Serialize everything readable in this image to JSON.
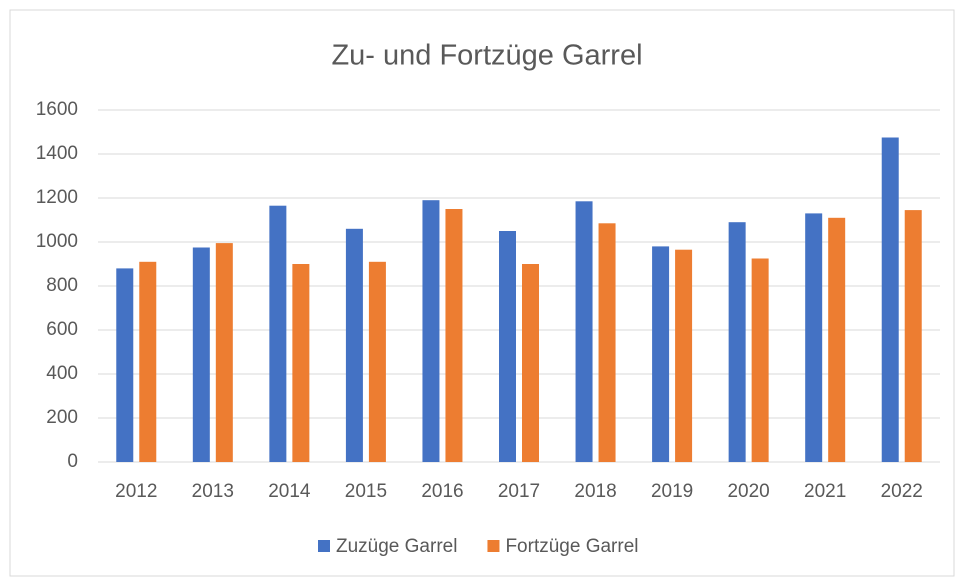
{
  "chart_data": {
    "type": "bar",
    "title": "Zu- und Fortzüge Garrel",
    "categories": [
      "2012",
      "2013",
      "2014",
      "2015",
      "2016",
      "2017",
      "2018",
      "2019",
      "2020",
      "2021",
      "2022"
    ],
    "series": [
      {
        "name": "Zuzüge Garrel",
        "color": "#4472c4",
        "values": [
          880,
          975,
          1165,
          1060,
          1190,
          1050,
          1185,
          980,
          1090,
          1130,
          1475
        ]
      },
      {
        "name": "Fortzüge Garrel",
        "color": "#ed7d31",
        "values": [
          910,
          995,
          900,
          910,
          1150,
          900,
          1085,
          965,
          925,
          1110,
          1145
        ]
      }
    ],
    "ylim": [
      0,
      1600
    ],
    "yticks": [
      0,
      200,
      400,
      600,
      800,
      1000,
      1200,
      1400,
      1600
    ],
    "grid": true,
    "legend": "bottom"
  }
}
